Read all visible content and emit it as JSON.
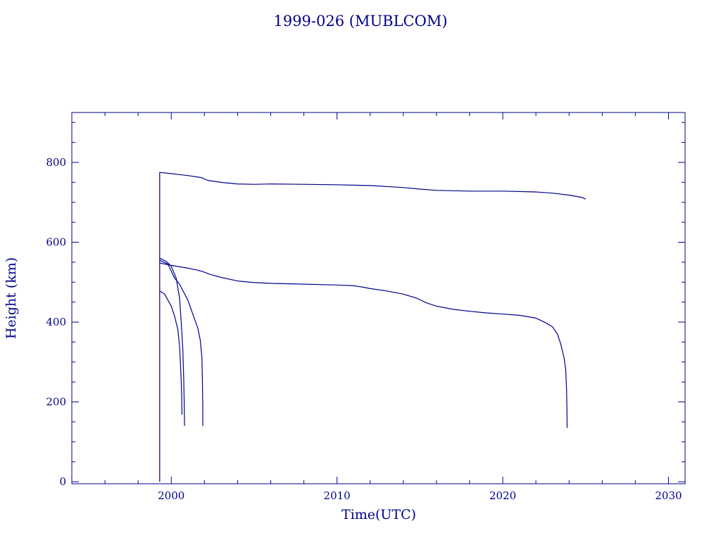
{
  "chart_data": {
    "type": "line",
    "title": "1999-026 (MUBLCOM)",
    "xlabel": "Time(UTC)",
    "ylabel": "Height (km)",
    "xlim": [
      1994,
      2031
    ],
    "ylim": [
      -5,
      925
    ],
    "x_ticks": [
      2000,
      2010,
      2020,
      2030
    ],
    "y_ticks": [
      0,
      200,
      400,
      600,
      800
    ],
    "grid": false,
    "color": "#00008b",
    "series": [
      {
        "points": [
          [
            1999.3,
            0
          ],
          [
            1999.3,
            775
          ],
          [
            2000.0,
            772
          ],
          [
            2001.0,
            767
          ],
          [
            2001.8,
            762
          ],
          [
            2002.2,
            755
          ],
          [
            2003.0,
            750
          ],
          [
            2004.0,
            746
          ],
          [
            2005.0,
            745
          ],
          [
            2006.0,
            746
          ],
          [
            2008.0,
            745
          ],
          [
            2010.0,
            744
          ],
          [
            2012.0,
            742
          ],
          [
            2014.0,
            737
          ],
          [
            2015.0,
            733
          ],
          [
            2016.0,
            730
          ],
          [
            2018.0,
            728
          ],
          [
            2020.0,
            728
          ],
          [
            2022.0,
            726
          ],
          [
            2023.0,
            723
          ],
          [
            2024.0,
            718
          ],
          [
            2024.8,
            712
          ],
          [
            2025.0,
            708
          ]
        ]
      },
      {
        "points": [
          [
            1999.3,
            548
          ],
          [
            2000.0,
            542
          ],
          [
            2001.0,
            535
          ],
          [
            2001.6,
            530
          ],
          [
            2002.0,
            525
          ],
          [
            2002.3,
            520
          ],
          [
            2003.0,
            512
          ],
          [
            2004.0,
            503
          ],
          [
            2005.0,
            499
          ],
          [
            2006.0,
            497
          ],
          [
            2008.0,
            495
          ],
          [
            2010.0,
            493
          ],
          [
            2011.0,
            491
          ],
          [
            2011.5,
            488
          ],
          [
            2012.0,
            484
          ],
          [
            2013.0,
            478
          ],
          [
            2014.0,
            470
          ],
          [
            2014.8,
            460
          ],
          [
            2015.4,
            448
          ],
          [
            2016.0,
            440
          ],
          [
            2017.0,
            432
          ],
          [
            2018.0,
            427
          ],
          [
            2019.0,
            423
          ],
          [
            2020.0,
            420
          ],
          [
            2021.0,
            417
          ],
          [
            2022.0,
            410
          ],
          [
            2022.6,
            398
          ],
          [
            2023.0,
            388
          ],
          [
            2023.3,
            370
          ],
          [
            2023.5,
            345
          ],
          [
            2023.7,
            310
          ],
          [
            2023.8,
            280
          ],
          [
            2023.85,
            230
          ],
          [
            2023.87,
            180
          ],
          [
            2023.88,
            135
          ]
        ]
      },
      {
        "points": [
          [
            1999.3,
            560
          ],
          [
            1999.7,
            552
          ],
          [
            2000.0,
            540
          ],
          [
            2000.3,
            510
          ],
          [
            2000.5,
            460
          ],
          [
            2000.6,
            400
          ],
          [
            2000.7,
            330
          ],
          [
            2000.75,
            260
          ],
          [
            2000.78,
            200
          ],
          [
            2000.8,
            140
          ]
        ]
      },
      {
        "points": [
          [
            1999.3,
            478
          ],
          [
            1999.6,
            470
          ],
          [
            2000.0,
            440
          ],
          [
            2000.2,
            415
          ],
          [
            2000.4,
            380
          ],
          [
            2000.5,
            340
          ],
          [
            2000.55,
            300
          ],
          [
            2000.6,
            250
          ],
          [
            2000.63,
            210
          ],
          [
            2000.65,
            168
          ]
        ]
      },
      {
        "points": [
          [
            1999.3,
            555
          ],
          [
            1999.8,
            545
          ],
          [
            2000.2,
            510
          ],
          [
            2000.5,
            495
          ],
          [
            2001.0,
            455
          ],
          [
            2001.3,
            420
          ],
          [
            2001.6,
            385
          ],
          [
            2001.75,
            355
          ],
          [
            2001.85,
            310
          ],
          [
            2001.88,
            250
          ],
          [
            2001.9,
            190
          ],
          [
            2001.9,
            140
          ]
        ]
      }
    ]
  }
}
